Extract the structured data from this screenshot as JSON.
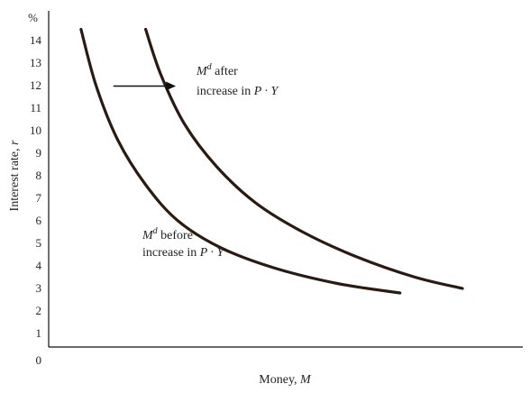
{
  "chart_data": {
    "type": "line",
    "xlabel": "Money, M",
    "ylabel": "Interest rate, r",
    "y_unit_label": "%",
    "y_ticks": [
      "0",
      "1",
      "2",
      "3",
      "4",
      "5",
      "6",
      "7",
      "8",
      "9",
      "10",
      "11",
      "12",
      "13",
      "14"
    ],
    "ylim": [
      0,
      15
    ],
    "xlim": [
      0,
      22
    ],
    "grid": false,
    "series": [
      {
        "name": "Md before increase in P · Y",
        "x": [
          1.5,
          2.2,
          3.2,
          4.5,
          6.0,
          8.0,
          10.5,
          13.5,
          16.3
        ],
        "y": [
          14.5,
          12.0,
          9.6,
          7.6,
          6.0,
          4.8,
          3.9,
          3.2,
          2.8
        ]
      },
      {
        "name": "Md after increase in P · Y",
        "x": [
          4.5,
          5.2,
          6.3,
          7.8,
          9.6,
          11.8,
          14.3,
          17.0,
          19.2
        ],
        "y": [
          14.5,
          12.5,
          10.3,
          8.4,
          6.8,
          5.5,
          4.4,
          3.5,
          3.0
        ]
      }
    ],
    "annotations": [
      {
        "sup": "d",
        "text": "after",
        "line2": "increase in",
        "italic_tail": "P · Y"
      },
      {
        "sup": "d",
        "text": "before",
        "line2": "increase in",
        "italic_tail": "P · Y"
      }
    ],
    "annotation_symbol": "M",
    "shift_arrow": {
      "from": [
        3.0,
        12.0
      ],
      "to": [
        5.9,
        12.0
      ]
    }
  }
}
